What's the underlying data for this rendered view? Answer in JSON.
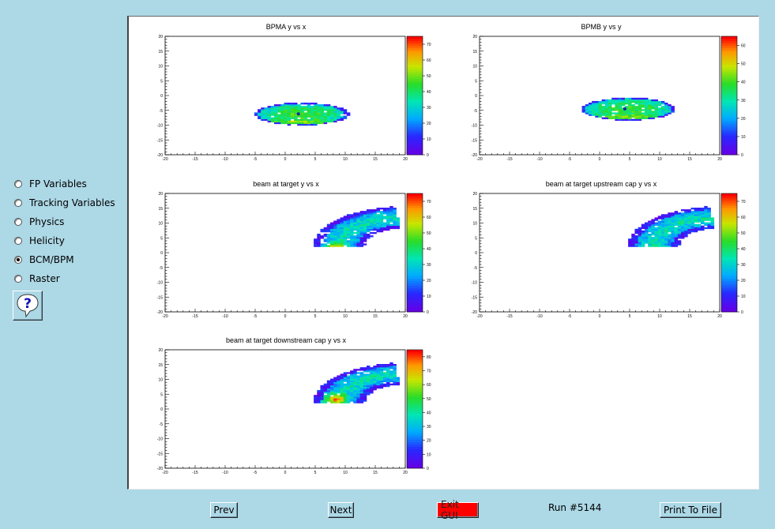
{
  "sidebar": {
    "options": [
      {
        "label": "FP Variables",
        "checked": false
      },
      {
        "label": "Tracking Variables",
        "checked": false
      },
      {
        "label": "Physics",
        "checked": false
      },
      {
        "label": "Helicity",
        "checked": false
      },
      {
        "label": "BCM/BPM",
        "checked": true
      },
      {
        "label": "Raster",
        "checked": false
      }
    ],
    "help_icon": "question-mark-icon"
  },
  "plots": [
    {
      "title": "BPMA y vs x",
      "x_ticks": [
        "-20",
        "-15",
        "-10",
        "-5",
        "0",
        "5",
        "10",
        "15",
        "20"
      ],
      "y_ticks": [
        "20",
        "15",
        "10",
        "5",
        "0",
        "-5",
        "-10",
        "-15",
        "-20"
      ],
      "z_ticks": [
        "70",
        "60",
        "50",
        "40",
        "30",
        "20",
        "10",
        "0"
      ]
    },
    {
      "title": "BPMB y vs y",
      "x_ticks": [
        "-20",
        "-15",
        "-10",
        "-5",
        "0",
        "5",
        "10",
        "15",
        "20"
      ],
      "y_ticks": [
        "20",
        "15",
        "10",
        "5",
        "0",
        "-5",
        "-10",
        "-15",
        "-20"
      ],
      "z_ticks": [
        "60",
        "50",
        "40",
        "30",
        "20",
        "10",
        "0"
      ]
    },
    {
      "title": "beam at target y vs x",
      "x_ticks": [
        "-20",
        "-15",
        "-10",
        "-5",
        "0",
        "5",
        "10",
        "15",
        "20"
      ],
      "y_ticks": [
        "20",
        "15",
        "10",
        "5",
        "0",
        "-5",
        "-10",
        "-15",
        "-20"
      ],
      "z_ticks": [
        "70",
        "60",
        "50",
        "40",
        "30",
        "20",
        "10",
        "0"
      ]
    },
    {
      "title": "beam at target upstream cap y vs x",
      "x_ticks": [
        "-20",
        "-15",
        "-10",
        "-5",
        "0",
        "5",
        "10",
        "15",
        "20"
      ],
      "y_ticks": [
        "20",
        "15",
        "10",
        "5",
        "0",
        "-5",
        "-10",
        "-15",
        "-20"
      ],
      "z_ticks": [
        "70",
        "60",
        "50",
        "40",
        "30",
        "20",
        "10",
        "0"
      ]
    },
    {
      "title": "beam at target downstream cap y vs x",
      "x_ticks": [
        "-20",
        "-15",
        "-10",
        "-5",
        "0",
        "5",
        "10",
        "15",
        "20"
      ],
      "y_ticks": [
        "20",
        "15",
        "10",
        "5",
        "0",
        "-5",
        "-10",
        "-15",
        "-20"
      ],
      "z_ticks": [
        "80",
        "70",
        "60",
        "50",
        "40",
        "30",
        "20",
        "10",
        "0"
      ]
    }
  ],
  "buttons": {
    "prev": "Prev",
    "next": "Next",
    "exit": "Exit GUI",
    "print": "Print To File"
  },
  "run_label": "Run #5144",
  "colors": {
    "background": "#add8e6",
    "exit_button": "#ff0000",
    "canvas": "#ffffff"
  }
}
